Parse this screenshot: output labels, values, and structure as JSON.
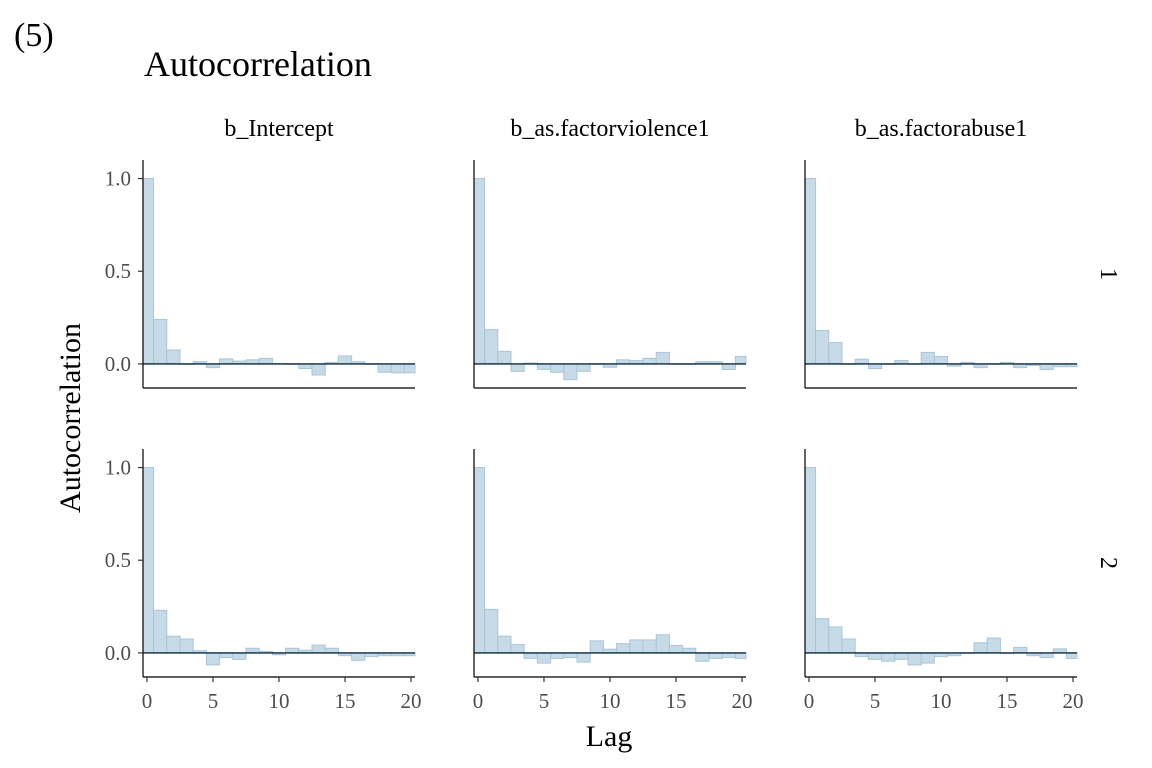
{
  "figure": {
    "tag": "(5)"
  },
  "chart_data": {
    "type": "bar",
    "title": "Autocorrelation",
    "xlabel": "Lag",
    "ylabel": "Autocorrelation",
    "xlim": [
      -0.3,
      20.3
    ],
    "ylim": [
      -0.13,
      1.1
    ],
    "x_ticks": [
      0,
      5,
      10,
      15,
      20
    ],
    "y_ticks": [
      0.0,
      0.5,
      1.0
    ],
    "y_tick_labels": [
      "0.0",
      "0.5",
      "1.0"
    ],
    "x_tick_labels": [
      "0",
      "5",
      "10",
      "15",
      "20"
    ],
    "lags": [
      0,
      1,
      2,
      3,
      4,
      5,
      6,
      7,
      8,
      9,
      10,
      11,
      12,
      13,
      14,
      15,
      16,
      17,
      18,
      19,
      20
    ],
    "columns": [
      "b_Intercept",
      "b_as.factorviolence1",
      "b_as.factorabuse1"
    ],
    "rows": [
      "1",
      "2"
    ],
    "panels": [
      {
        "column": "b_Intercept",
        "row": "1",
        "values": [
          1.0,
          0.24,
          0.075,
          0.0,
          0.012,
          -0.02,
          0.027,
          0.015,
          0.022,
          0.03,
          0.002,
          0.0,
          -0.025,
          -0.06,
          0.008,
          0.043,
          0.012,
          0.0,
          -0.045,
          -0.048,
          -0.048
        ]
      },
      {
        "column": "b_as.factorviolence1",
        "row": "1",
        "values": [
          1.0,
          0.185,
          0.068,
          -0.04,
          0.005,
          -0.03,
          -0.045,
          -0.085,
          -0.04,
          0.0,
          -0.018,
          0.022,
          0.018,
          0.03,
          0.062,
          0.0,
          0.0,
          0.012,
          0.012,
          -0.03,
          0.04
        ]
      },
      {
        "column": "b_as.factorabuse1",
        "row": "1",
        "values": [
          1.0,
          0.18,
          0.115,
          0.0,
          0.025,
          -0.025,
          0.0,
          0.018,
          0.0,
          0.062,
          0.04,
          -0.012,
          0.008,
          -0.02,
          0.0,
          0.008,
          -0.02,
          -0.008,
          -0.03,
          -0.015,
          -0.015
        ]
      },
      {
        "column": "b_Intercept",
        "row": "2",
        "values": [
          1.0,
          0.23,
          0.09,
          0.075,
          0.012,
          -0.065,
          -0.025,
          -0.035,
          0.025,
          0.008,
          -0.01,
          0.025,
          0.015,
          0.042,
          0.025,
          -0.015,
          -0.04,
          -0.02,
          -0.015,
          -0.015,
          -0.015
        ]
      },
      {
        "column": "b_as.factorviolence1",
        "row": "2",
        "values": [
          1.0,
          0.235,
          0.09,
          0.045,
          -0.03,
          -0.055,
          -0.03,
          -0.025,
          -0.05,
          0.065,
          0.02,
          0.05,
          0.07,
          0.07,
          0.098,
          0.04,
          0.025,
          -0.045,
          -0.03,
          -0.025,
          -0.03
        ]
      },
      {
        "column": "b_as.factorabuse1",
        "row": "2",
        "values": [
          1.0,
          0.185,
          0.14,
          0.075,
          -0.02,
          -0.035,
          -0.045,
          -0.035,
          -0.065,
          -0.055,
          -0.02,
          -0.015,
          0.0,
          0.055,
          0.08,
          0.0,
          0.03,
          -0.015,
          -0.025,
          0.022,
          -0.03
        ]
      }
    ],
    "grid": false,
    "legend": "none"
  }
}
